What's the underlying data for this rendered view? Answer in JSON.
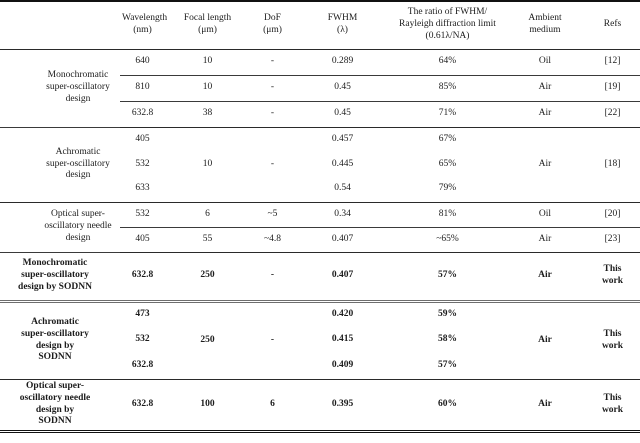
{
  "table": {
    "header": {
      "corner": "",
      "wavelength": "Wavelength\n(nm)",
      "focal": "Focal length\n(μm)",
      "dof": "DoF\n(μm)",
      "fwhm": "FWHM\n(λ)",
      "ratio": "The ratio of FWHM/\nRayleigh diffraction limit\n(0.61λ/NA)",
      "medium": "Ambient\nmedium",
      "refs": "Refs"
    },
    "groups": [
      {
        "label": "Monochromatic\nsuper-oscillatory\ndesign",
        "rows": [
          {
            "wavelength": "640",
            "focal": "10",
            "dof": "-",
            "fwhm": "0.289",
            "ratio": "64%",
            "medium": "Oil",
            "ref": "[12]"
          },
          {
            "wavelength": "810",
            "focal": "10",
            "dof": "-",
            "fwhm": "0.45",
            "ratio": "85%",
            "medium": "Air",
            "ref": "[19]"
          },
          {
            "wavelength": "632.8",
            "focal": "38",
            "dof": "-",
            "fwhm": "0.45",
            "ratio": "71%",
            "medium": "Air",
            "ref": "[22]"
          }
        ]
      },
      {
        "label": "Achromatic\nsuper-oscillatory\ndesign",
        "rows": [
          {
            "wavelength": "405",
            "fwhm": "0.457",
            "ratio": "67%"
          },
          {
            "wavelength": "532",
            "fwhm": "0.445",
            "ratio": "65%"
          },
          {
            "wavelength": "633",
            "fwhm": "0.54",
            "ratio": "79%"
          }
        ],
        "merged": {
          "focal": "10",
          "dof": "-",
          "medium": "Air",
          "ref": "[18]"
        }
      },
      {
        "label": "Optical super-\noscillatory needle\ndesign",
        "rows": [
          {
            "wavelength": "532",
            "focal": "6",
            "dof": "~5",
            "fwhm": "0.34",
            "ratio": "81%",
            "medium": "Oil",
            "ref": "[20]"
          },
          {
            "wavelength": "405",
            "focal": "55",
            "dof": "~4.8",
            "fwhm": "0.407",
            "ratio": "~65%",
            "medium": "Air",
            "ref": "[23]"
          }
        ]
      },
      {
        "label": "Monochromatic\nsuper-oscillatory\ndesign by SODNN",
        "rows": [
          {
            "wavelength": "632.8",
            "focal": "250",
            "dof": "-",
            "fwhm": "0.407",
            "ratio": "57%",
            "medium": "Air",
            "ref": "This\nwork"
          }
        ]
      },
      {
        "label": "Achromatic\nsuper-oscillatory\ndesign by\nSODNN",
        "rows": [
          {
            "wavelength": "473",
            "fwhm": "0.420",
            "ratio": "59%"
          },
          {
            "wavelength": "532",
            "fwhm": "0.415",
            "ratio": "58%"
          },
          {
            "wavelength": "632.8",
            "fwhm": "0.409",
            "ratio": "57%"
          }
        ],
        "merged": {
          "focal": "250",
          "dof": "-",
          "medium": "Air",
          "ref": "This\nwork"
        }
      },
      {
        "label": "Optical super-\noscillatory needle\ndesign by\nSODNN",
        "rows": [
          {
            "wavelength": "632.8",
            "focal": "100",
            "dof": "6",
            "fwhm": "0.395",
            "ratio": "60%",
            "medium": "Air",
            "ref": "This\nwork"
          }
        ]
      }
    ]
  }
}
